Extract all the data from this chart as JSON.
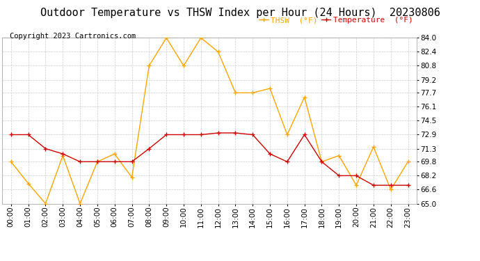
{
  "title": "Outdoor Temperature vs THSW Index per Hour (24 Hours)  20230806",
  "copyright": "Copyright 2023 Cartronics.com",
  "legend_thsw": "THSW  (°F)",
  "legend_temp": "Temperature  (°F)",
  "hours": [
    "00:00",
    "01:00",
    "02:00",
    "03:00",
    "04:00",
    "05:00",
    "06:00",
    "07:00",
    "08:00",
    "09:00",
    "10:00",
    "11:00",
    "12:00",
    "13:00",
    "14:00",
    "15:00",
    "16:00",
    "17:00",
    "18:00",
    "19:00",
    "20:00",
    "21:00",
    "22:00",
    "23:00"
  ],
  "temperature": [
    72.9,
    72.9,
    71.3,
    70.7,
    69.8,
    69.8,
    69.8,
    69.8,
    71.3,
    72.9,
    72.9,
    72.9,
    73.1,
    73.1,
    72.9,
    70.7,
    69.8,
    72.9,
    69.8,
    68.2,
    68.2,
    67.1,
    67.1,
    67.1
  ],
  "thsw": [
    69.8,
    67.3,
    65.0,
    70.5,
    65.0,
    69.8,
    70.7,
    68.0,
    80.8,
    84.0,
    80.8,
    84.0,
    82.4,
    77.7,
    77.7,
    78.2,
    72.9,
    77.2,
    69.8,
    70.5,
    67.1,
    71.5,
    66.6,
    69.8
  ],
  "ylim_min": 65.0,
  "ylim_max": 84.0,
  "yticks": [
    65.0,
    66.6,
    68.2,
    69.8,
    71.3,
    72.9,
    74.5,
    76.1,
    77.7,
    79.2,
    80.8,
    82.4,
    84.0
  ],
  "thsw_color": "#FFA500",
  "temp_color": "#CC0000",
  "title_color": "#000000",
  "copyright_color": "#000000",
  "legend_thsw_color": "#FFA500",
  "legend_temp_color": "#CC0000",
  "background_color": "#ffffff",
  "grid_color": "#cccccc",
  "title_fontsize": 11,
  "copyright_fontsize": 7.5,
  "legend_fontsize": 8,
  "axis_fontsize": 7.5
}
